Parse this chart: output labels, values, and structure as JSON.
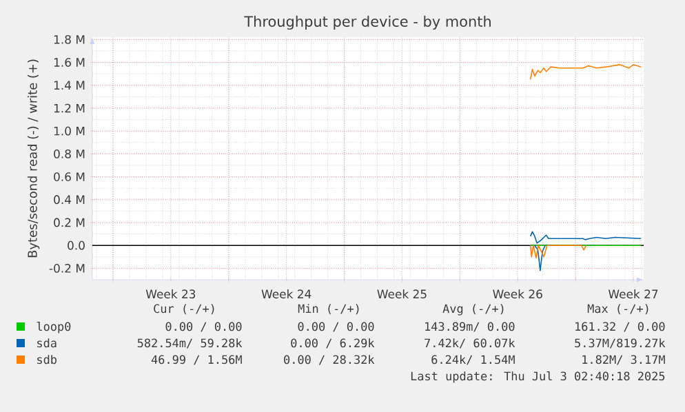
{
  "chart_data": {
    "type": "line",
    "title": "Throughput per device - by month",
    "ylabel": "Bytes/second read (-) / write (+)",
    "xlim": [
      "2025-05-30T18:00",
      "2025-07-03T03:00"
    ],
    "xticks": [
      {
        "value": "2025-06-01",
        "label": null
      },
      {
        "value": "2025-06-04T12:00",
        "label": "Week 23"
      },
      {
        "value": "2025-06-08",
        "label": null
      },
      {
        "value": "2025-06-11T12:00",
        "label": "Week 24"
      },
      {
        "value": "2025-06-15",
        "label": null
      },
      {
        "value": "2025-06-18T12:00",
        "label": "Week 25"
      },
      {
        "value": "2025-06-22",
        "label": null
      },
      {
        "value": "2025-06-25T12:00",
        "label": "Week 26"
      },
      {
        "value": "2025-06-29",
        "label": null
      },
      {
        "value": "2025-07-02T12:00",
        "label": "Week 27"
      }
    ],
    "ylim": [
      -0.3,
      1.82
    ],
    "yticks": [
      {
        "value": -0.2,
        "label": "-0.2 M"
      },
      {
        "value": 0,
        "label": "0.0"
      },
      {
        "value": 0.2,
        "label": "0.2 M"
      },
      {
        "value": 0.4,
        "label": "0.4 M"
      },
      {
        "value": 0.6,
        "label": "0.6 M"
      },
      {
        "value": 0.8,
        "label": "0.8 M"
      },
      {
        "value": 1.0,
        "label": "1.0 M"
      },
      {
        "value": 1.2,
        "label": "1.2 M"
      },
      {
        "value": 1.4,
        "label": "1.4 M"
      },
      {
        "value": 1.6,
        "label": "1.6 M"
      },
      {
        "value": 1.8,
        "label": "1.8 M"
      }
    ],
    "grid": true,
    "legend": "bottom",
    "ref_lines": [
      {
        "axis": "y",
        "value": 0,
        "color": "#000000"
      }
    ],
    "series": [
      {
        "name": "loop0",
        "color": "#00cc00",
        "x": [
          "2025-06-26T06:30",
          "2025-07-02T23:20"
        ],
        "values": [
          0,
          0
        ]
      },
      {
        "name": "sda",
        "color": "#0066b3",
        "x": [
          "2025-06-26T06:30",
          "2025-06-26T09:20",
          "2025-06-26T12:40",
          "2025-06-26T16:00",
          "2025-06-26T22:40",
          "2025-06-27T05:20",
          "2025-06-27T08:40",
          "2025-06-29T10:40",
          "2025-06-29T14:00",
          "2025-06-29T20:40",
          "2025-06-30T06:40",
          "2025-06-30T20:00",
          "2025-07-01T09:20",
          "2025-07-02T23:20"
        ],
        "values": [
          0.08,
          0.12,
          0.08,
          0.02,
          0.05,
          0.09,
          0.06,
          0.06,
          0.05,
          0.06,
          0.07,
          0.06,
          0.07,
          0.06
        ]
      },
      {
        "color": "#0066b3",
        "x": [
          "2025-06-26T12:40",
          "2025-06-26T17:20",
          "2025-06-26T20:40",
          "2025-06-27T00:00",
          "2025-06-27T04:00"
        ],
        "values": [
          0,
          -0.04,
          -0.22,
          -0.05,
          0
        ]
      },
      {
        "name": "sdb",
        "color": "#ff8000",
        "x": [
          "2025-06-26T06:30",
          "2025-06-26T09:20",
          "2025-06-26T12:40",
          "2025-06-26T17:20",
          "2025-06-26T20:40",
          "2025-06-27T02:00",
          "2025-06-27T05:20",
          "2025-06-27T12:00",
          "2025-06-28T01:20",
          "2025-06-29T10:40",
          "2025-06-29T18:40",
          "2025-06-30T06:40",
          "2025-06-30T20:00",
          "2025-07-01T16:00",
          "2025-07-02T05:20",
          "2025-07-02T12:00",
          "2025-07-02T23:20"
        ],
        "values": [
          1.45,
          1.54,
          1.48,
          1.53,
          1.51,
          1.55,
          1.52,
          1.56,
          1.55,
          1.55,
          1.57,
          1.55,
          1.56,
          1.58,
          1.55,
          1.58,
          1.56
        ]
      },
      {
        "color": "#ff8000",
        "x": [
          "2025-06-26T06:30",
          "2025-06-26T08:00",
          "2025-06-26T10:40",
          "2025-06-26T14:40",
          "2025-06-26T18:00",
          "2025-06-27T02:00",
          "2025-06-27T06:40",
          "2025-06-29T08:40",
          "2025-06-29T12:00",
          "2025-06-29T15:20"
        ],
        "values": [
          0,
          -0.1,
          0,
          -0.11,
          0,
          -0.1,
          0,
          0,
          -0.04,
          0
        ]
      }
    ],
    "annotations": [
      "Cur (-/+)",
      "Min (-/+)",
      "Avg (-/+)",
      "Max (-/+)",
      "0.00 /  0.00",
      "0.00 /  0.00",
      "143.89m/  0.00",
      "161.32 /  0.00",
      "582.54m/ 59.28k",
      "0.00 /  6.29k",
      "7.42k/ 60.07k",
      "5.37M/819.27k",
      "46.99 /  1.56M",
      "0.00 / 28.32k",
      "6.24k/  1.54M",
      "1.82M/  3.17M",
      "Last update: Thu Jul  3 02:40:18 2025"
    ]
  }
}
